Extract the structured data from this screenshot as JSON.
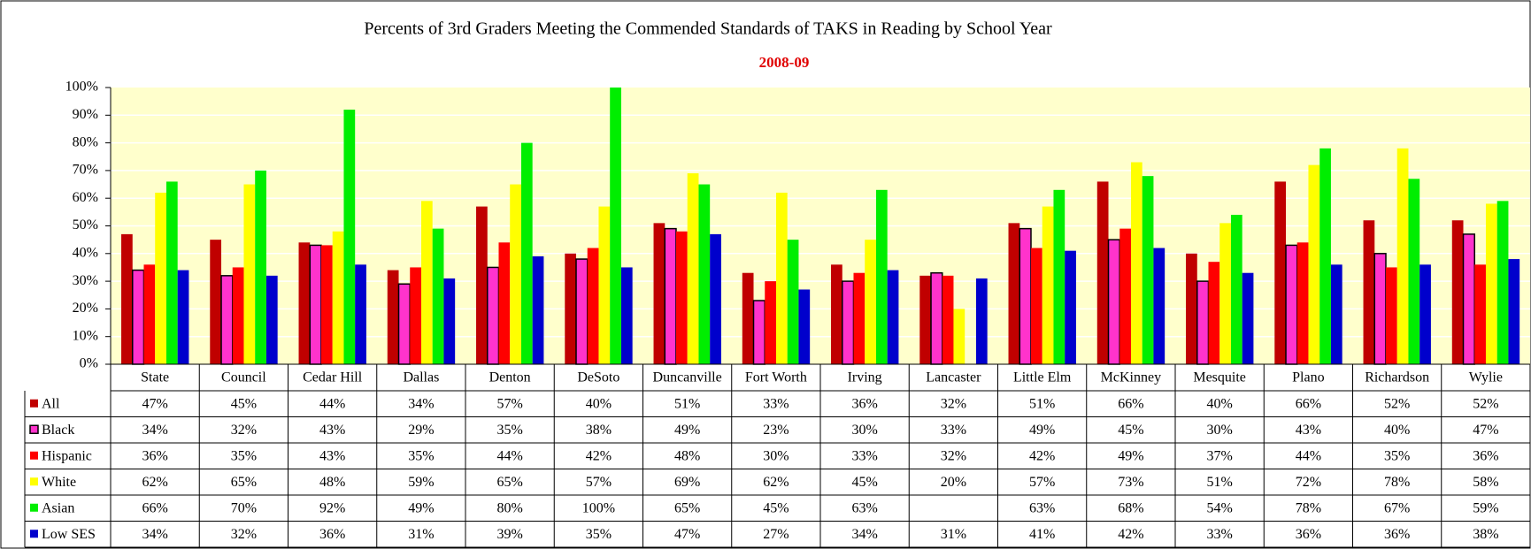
{
  "chart_data": {
    "type": "bar",
    "title": "Percents of 3rd Graders Meeting the Commended Standards of TAKS in Reading by School Year",
    "subtitle": "2008-09",
    "categories": [
      "State",
      "Council",
      "Cedar Hill",
      "Dallas",
      "Denton",
      "DeSoto",
      "Duncanville",
      "Fort Worth",
      "Irving",
      "Lancaster",
      "Little Elm",
      "McKinney",
      "Mesquite",
      "Plano",
      "Richardson",
      "Wylie"
    ],
    "series": [
      {
        "name": "All",
        "color": "#c00000",
        "values": [
          47,
          45,
          44,
          34,
          57,
          40,
          51,
          33,
          36,
          32,
          51,
          66,
          40,
          66,
          52,
          52
        ],
        "value_labels": [
          "47%",
          "45%",
          "44%",
          "34%",
          "57%",
          "40%",
          "51%",
          "33%",
          "36%",
          "32%",
          "51%",
          "66%",
          "40%",
          "66%",
          "52%",
          "52%"
        ]
      },
      {
        "name": "Black",
        "color": "#ff33cc",
        "values": [
          34,
          32,
          43,
          29,
          35,
          38,
          49,
          23,
          30,
          33,
          49,
          45,
          30,
          43,
          40,
          47
        ],
        "value_labels": [
          "34%",
          "32%",
          "43%",
          "29%",
          "35%",
          "38%",
          "49%",
          "23%",
          "30%",
          "33%",
          "49%",
          "45%",
          "30%",
          "43%",
          "40%",
          "47%"
        ]
      },
      {
        "name": "Hispanic",
        "color": "#ff0000",
        "values": [
          36,
          35,
          43,
          35,
          44,
          42,
          48,
          30,
          33,
          32,
          42,
          49,
          37,
          44,
          35,
          36
        ],
        "value_labels": [
          "36%",
          "35%",
          "43%",
          "35%",
          "44%",
          "42%",
          "48%",
          "30%",
          "33%",
          "32%",
          "42%",
          "49%",
          "37%",
          "44%",
          "35%",
          "36%"
        ]
      },
      {
        "name": "White",
        "color": "#ffff00",
        "values": [
          62,
          65,
          48,
          59,
          65,
          57,
          69,
          62,
          45,
          20,
          57,
          73,
          51,
          72,
          78,
          58
        ],
        "value_labels": [
          "62%",
          "65%",
          "48%",
          "59%",
          "65%",
          "57%",
          "69%",
          "62%",
          "45%",
          "20%",
          "57%",
          "73%",
          "51%",
          "72%",
          "78%",
          "58%"
        ]
      },
      {
        "name": "Asian",
        "color": "#00ee00",
        "values": [
          66,
          70,
          92,
          49,
          80,
          100,
          65,
          45,
          63,
          null,
          63,
          68,
          54,
          78,
          67,
          59
        ],
        "value_labels": [
          "66%",
          "70%",
          "92%",
          "49%",
          "80%",
          "100%",
          "65%",
          "45%",
          "63%",
          null,
          "63%",
          "68%",
          "54%",
          "78%",
          "67%",
          "59%"
        ]
      },
      {
        "name": "Low SES",
        "color": "#0000cc",
        "values": [
          34,
          32,
          36,
          31,
          39,
          35,
          47,
          27,
          34,
          31,
          41,
          42,
          33,
          36,
          36,
          38
        ],
        "value_labels": [
          "34%",
          "32%",
          "36%",
          "31%",
          "39%",
          "35%",
          "47%",
          "27%",
          "34%",
          "31%",
          "41%",
          "42%",
          "33%",
          "36%",
          "36%",
          "38%"
        ]
      }
    ],
    "ylim": [
      0,
      100
    ],
    "yticks": [
      {
        "value": 0,
        "label": "0%"
      },
      {
        "value": 10,
        "label": "10%"
      },
      {
        "value": 20,
        "label": "20%"
      },
      {
        "value": 30,
        "label": "30%"
      },
      {
        "value": 40,
        "label": "40%"
      },
      {
        "value": 50,
        "label": "50%"
      },
      {
        "value": 60,
        "label": "60%"
      },
      {
        "value": 70,
        "label": "70%"
      },
      {
        "value": 80,
        "label": "80%"
      },
      {
        "value": 90,
        "label": "90%"
      },
      {
        "value": 100,
        "label": "100%"
      }
    ],
    "grid": true
  }
}
